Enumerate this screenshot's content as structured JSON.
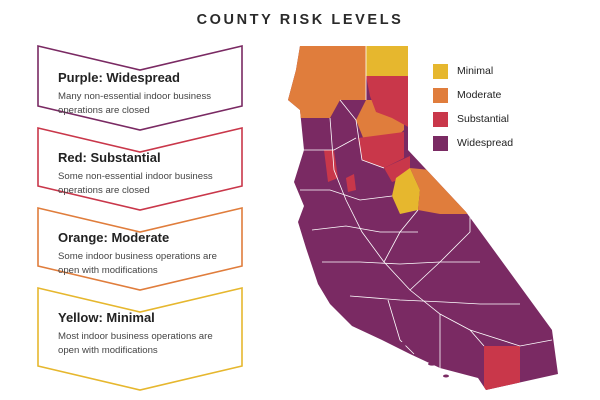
{
  "title": "COUNTY RISK LEVELS",
  "colors": {
    "minimal": "#e6b72e",
    "moderate": "#e07d3c",
    "substantial": "#c9374a",
    "widespread": "#7a2a63"
  },
  "tiers": [
    {
      "name": "Purple: Widespread",
      "description": "Many non-essential indoor business operations are closed",
      "color": "#7a2a63"
    },
    {
      "name": "Red: Substantial",
      "description": "Some non-essential indoor business operations are closed",
      "color": "#c9374a"
    },
    {
      "name": "Orange: Moderate",
      "description": "Some indoor business operations are open with modifications",
      "color": "#e07d3c"
    },
    {
      "name": "Yellow: Minimal",
      "description": "Most indoor business operations are open with modifications",
      "color": "#e6b72e"
    }
  ],
  "legend": [
    {
      "label": "Minimal",
      "color": "#e6b72e"
    },
    {
      "label": "Moderate",
      "color": "#e07d3c"
    },
    {
      "label": "Substantial",
      "color": "#c9374a"
    },
    {
      "label": "Widespread",
      "color": "#7a2a63"
    }
  ]
}
